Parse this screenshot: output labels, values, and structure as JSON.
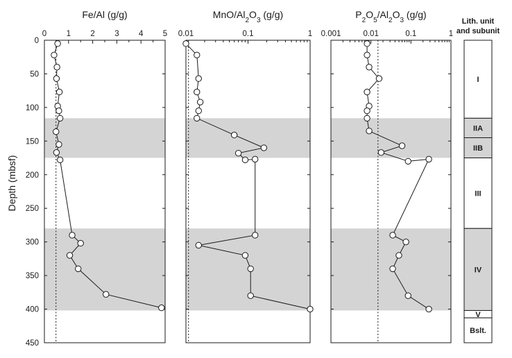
{
  "y_axis": {
    "label": "Depth (mbsf)",
    "range": [
      0,
      450
    ],
    "ticks": [
      "0",
      "50",
      "100",
      "150",
      "200",
      "250",
      "300",
      "350",
      "400",
      "450"
    ]
  },
  "shaded_intervals": [
    [
      116,
      175
    ],
    [
      280,
      402
    ]
  ],
  "chart_data": [
    {
      "type": "line",
      "title": "Fe/Al (g/g)",
      "scale": "linear",
      "xlim": [
        0,
        5
      ],
      "x_ticks": [
        "0",
        "1",
        "2",
        "3",
        "4",
        "5"
      ],
      "reference_value": 0.48,
      "points": [
        {
          "depth": 5,
          "value": 0.55
        },
        {
          "depth": 22,
          "value": 0.4
        },
        {
          "depth": 40,
          "value": 0.52
        },
        {
          "depth": 57,
          "value": 0.5
        },
        {
          "depth": 77,
          "value": 0.62
        },
        {
          "depth": 98,
          "value": 0.55
        },
        {
          "depth": 105,
          "value": 0.6
        },
        {
          "depth": 116,
          "value": 0.65
        },
        {
          "depth": 136,
          "value": 0.48
        },
        {
          "depth": 155,
          "value": 0.6
        },
        {
          "depth": 167,
          "value": 0.5
        },
        {
          "depth": 178,
          "value": 0.65
        },
        {
          "depth": 290,
          "value": 1.15
        },
        {
          "depth": 302,
          "value": 1.5
        },
        {
          "depth": 320,
          "value": 1.05
        },
        {
          "depth": 340,
          "value": 1.4
        },
        {
          "depth": 378,
          "value": 2.55
        },
        {
          "depth": 398,
          "value": 4.85
        }
      ]
    },
    {
      "type": "line",
      "title": "MnO/Al2O3 (g/g)",
      "scale": "log",
      "xlim": [
        0.01,
        1
      ],
      "x_ticks": [
        "0.01",
        "0.1",
        "1"
      ],
      "reference_value": 0.011,
      "points": [
        {
          "depth": 5,
          "value": 0.01
        },
        {
          "depth": 22,
          "value": 0.015
        },
        {
          "depth": 57,
          "value": 0.016
        },
        {
          "depth": 77,
          "value": 0.015
        },
        {
          "depth": 92,
          "value": 0.017
        },
        {
          "depth": 105,
          "value": 0.016
        },
        {
          "depth": 116,
          "value": 0.015
        },
        {
          "depth": 141,
          "value": 0.06
        },
        {
          "depth": 160,
          "value": 0.18
        },
        {
          "depth": 168,
          "value": 0.07
        },
        {
          "depth": 178,
          "value": 0.09
        },
        {
          "depth": 177,
          "value": 0.13
        },
        {
          "depth": 290,
          "value": 0.13
        },
        {
          "depth": 305,
          "value": 0.016
        },
        {
          "depth": 320,
          "value": 0.09
        },
        {
          "depth": 340,
          "value": 0.11
        },
        {
          "depth": 380,
          "value": 0.11
        },
        {
          "depth": 400,
          "value": 1.0
        }
      ]
    },
    {
      "type": "line",
      "title": "P2O5/Al2O3 (g/g)",
      "scale": "log",
      "xlim": [
        0.001,
        1
      ],
      "x_ticks": [
        "0.001",
        "0.01",
        "0.1",
        "1"
      ],
      "reference_value": 0.015,
      "points": [
        {
          "depth": 5,
          "value": 0.008
        },
        {
          "depth": 22,
          "value": 0.008
        },
        {
          "depth": 40,
          "value": 0.009
        },
        {
          "depth": 57,
          "value": 0.016
        },
        {
          "depth": 77,
          "value": 0.008
        },
        {
          "depth": 98,
          "value": 0.009
        },
        {
          "depth": 105,
          "value": 0.008
        },
        {
          "depth": 116,
          "value": 0.008
        },
        {
          "depth": 135,
          "value": 0.009
        },
        {
          "depth": 157,
          "value": 0.06
        },
        {
          "depth": 167,
          "value": 0.018
        },
        {
          "depth": 180,
          "value": 0.085
        },
        {
          "depth": 177,
          "value": 0.28
        },
        {
          "depth": 290,
          "value": 0.035
        },
        {
          "depth": 300,
          "value": 0.075
        },
        {
          "depth": 320,
          "value": 0.05
        },
        {
          "depth": 340,
          "value": 0.035
        },
        {
          "depth": 380,
          "value": 0.085
        },
        {
          "depth": 400,
          "value": 0.28
        }
      ]
    }
  ],
  "lithology": {
    "header": [
      "Lith. unit",
      "and subunit"
    ],
    "units": [
      {
        "name": "I",
        "top": 0,
        "bottom": 116,
        "shaded": false
      },
      {
        "name": "IIA",
        "top": 116,
        "bottom": 145,
        "shaded": true
      },
      {
        "name": "IIB",
        "top": 145,
        "bottom": 175,
        "shaded": true
      },
      {
        "name": "III",
        "top": 175,
        "bottom": 280,
        "shaded": false
      },
      {
        "name": "IV",
        "top": 280,
        "bottom": 402,
        "shaded": true
      },
      {
        "name": "V",
        "top": 402,
        "bottom": 413,
        "shaded": false
      },
      {
        "name": "Bslt.",
        "top": 413,
        "bottom": 450,
        "shaded": false
      }
    ]
  }
}
